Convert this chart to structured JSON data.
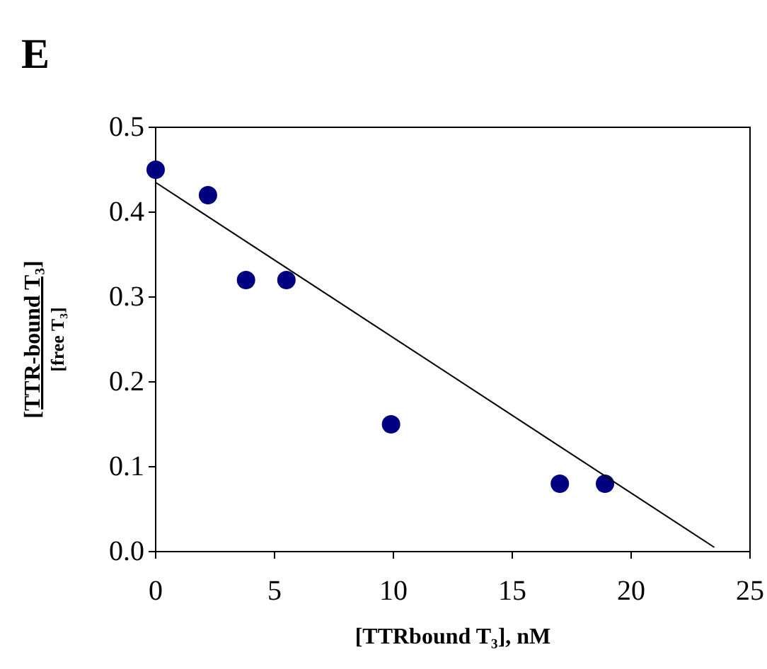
{
  "chart_data": {
    "type": "scatter",
    "title": "E",
    "xlabel": "[TTRbound T₃], nM",
    "ylabel": "[TTR-bound T₃]\n[free T₃]",
    "xlim": [
      0,
      25
    ],
    "xticks": [
      0,
      5,
      10,
      15,
      20,
      25
    ],
    "ylim": [
      0,
      0.5
    ],
    "yticks": [
      {
        "value": 0,
        "label": "0.0"
      },
      0.1,
      0.2,
      0.3,
      0.4,
      0.5
    ],
    "grid": false,
    "marker": "circle",
    "series": [
      {
        "color": "#000080",
        "x": [
          0,
          2.2,
          3.8,
          5.5,
          9.9,
          17.0,
          18.9
        ],
        "values": [
          0.45,
          0.42,
          0.32,
          0.32,
          0.15,
          0.08,
          0.08
        ]
      },
      {
        "type": "line",
        "color": "#000000",
        "x": [
          0,
          23.5
        ],
        "values": [
          0.435,
          0.005
        ],
        "marker": "none",
        "line_style": "solid"
      }
    ]
  }
}
